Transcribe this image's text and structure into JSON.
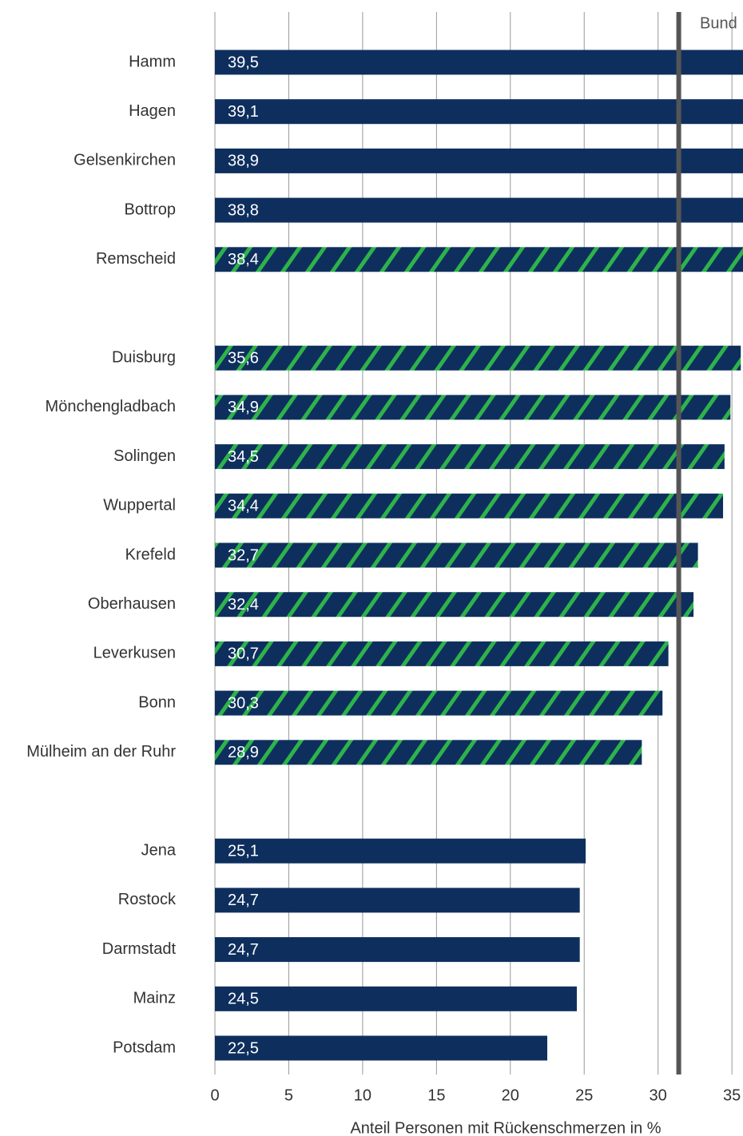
{
  "chart_data": {
    "type": "hbar",
    "x_label": "Anteil Personen mit Rückenschmerzen in %",
    "categories": [
      "Hamm",
      "Hagen",
      "Gelsenkirchen",
      "Bottrop",
      "Remscheid",
      null,
      "Duisburg",
      "Mönchengladbach",
      "Solingen",
      "Wuppertal",
      "Krefeld",
      "Oberhausen",
      "Leverkusen",
      "Bonn",
      "Mülheim an der Ruhr",
      null,
      "Jena",
      "Rostock",
      "Darmstadt",
      "Mainz",
      "Potsdam"
    ],
    "values": [
      39.5,
      39.1,
      38.9,
      38.8,
      38.4,
      null,
      35.6,
      34.9,
      34.5,
      34.4,
      32.7,
      32.4,
      30.7,
      30.3,
      28.9,
      null,
      25.1,
      24.7,
      24.7,
      24.5,
      22.5
    ],
    "value_labels": [
      "39,5",
      "39,1",
      "38,9",
      "38,8",
      "38,4",
      null,
      "35,6",
      "34,9",
      "34,5",
      "34,4",
      "32,7",
      "32,4",
      "30,7",
      "30,3",
      "28,9",
      null,
      "25,1",
      "24,7",
      "24,7",
      "24,5",
      "22,5"
    ],
    "hatched": [
      false,
      false,
      false,
      false,
      true,
      null,
      true,
      true,
      true,
      true,
      true,
      true,
      true,
      true,
      true,
      null,
      false,
      false,
      false,
      false,
      false
    ],
    "color": "#0e2f5e",
    "hatch_color": "#2db34a",
    "xlim": [
      0,
      35.75
    ],
    "xticks": [
      0,
      5,
      10,
      15,
      20,
      25,
      30,
      35
    ],
    "grid": true,
    "reference_line": {
      "value": 31.4,
      "label": "Bund",
      "color": "#555555"
    }
  }
}
